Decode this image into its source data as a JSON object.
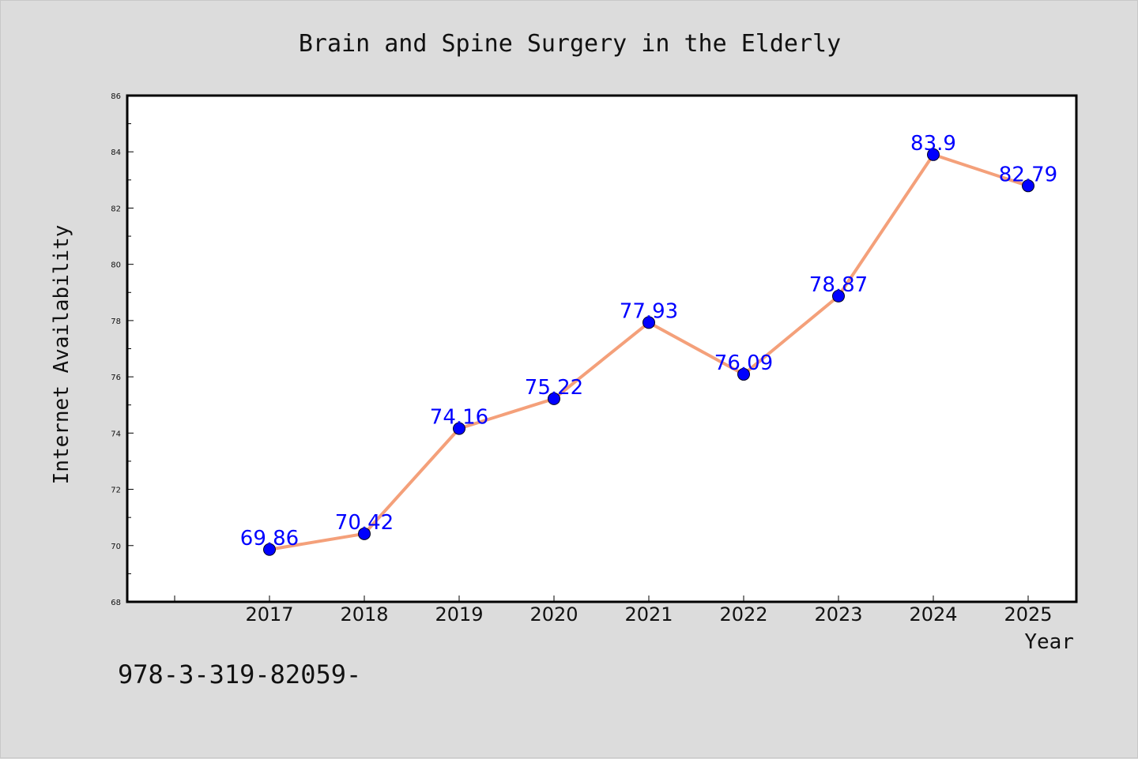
{
  "chart_data": {
    "type": "line",
    "title": "Brain and Spine Surgery in the Elderly",
    "xlabel": "Year",
    "ylabel": "Internet Availability",
    "categories": [
      "2017",
      "2018",
      "2019",
      "2020",
      "2021",
      "2022",
      "2023",
      "2024",
      "2025"
    ],
    "series": [
      {
        "values": [
          69.86,
          70.42,
          74.16,
          75.22,
          77.93,
          76.09,
          78.87,
          83.9,
          82.79
        ],
        "data_labels": [
          "69.86",
          "70.42",
          "74.16",
          "75.22",
          "77.93",
          "76.09",
          "78.87",
          "83.9",
          "82.79"
        ]
      }
    ],
    "ylim": [
      68,
      86
    ],
    "y_ticks": [
      "68",
      "70",
      "72",
      "74",
      "76",
      "78",
      "80",
      "82",
      "84",
      "86"
    ],
    "grid": false,
    "line_color": "#f4a07a",
    "marker_color": "#0000ff",
    "label_color": "#0000ff"
  },
  "footer_text": "978-3-319-82059-"
}
